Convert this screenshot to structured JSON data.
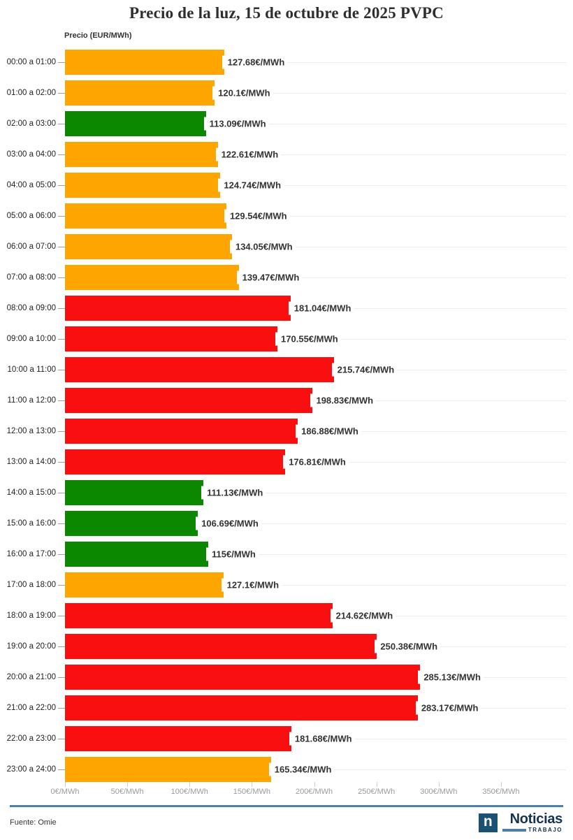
{
  "title": "Precio de la luz, 15 de octubre de 2025 PVPC",
  "axis_title": "Precio (EUR/MWh)",
  "colors": {
    "orange": "#FFA502",
    "red": "#F90F0F",
    "green": "#0B8700",
    "separator_blue": "#4D80A8",
    "navy": "#16324F",
    "logo_square_blue": "#1D5174"
  },
  "chart_data": {
    "type": "bar",
    "orientation": "horizontal",
    "title": "Precio de la luz, 15 de octubre de 2025 PVPC",
    "xlabel": "Precio (EUR/MWh)",
    "ylabel": "",
    "xlim": [
      0,
      400
    ],
    "grid": "horizontal row lines only",
    "legend": "none",
    "x_tick_values": [
      0,
      50,
      100,
      150,
      200,
      250,
      300,
      350
    ],
    "x_tick_labels": [
      "0€/MWh",
      "50€/MWh",
      "100€/MWh",
      "150€/MWh",
      "200€/MWh",
      "250€/MWh",
      "300€/MWh",
      "350€/MWh"
    ],
    "categories": [
      "00:00 a 01:00",
      "01:00 a 02:00",
      "02:00 a 03:00",
      "03:00 a 04:00",
      "04:00 a 05:00",
      "05:00 a 06:00",
      "06:00 a 07:00",
      "07:00 a 08:00",
      "08:00 a 09:00",
      "09:00 a 10:00",
      "10:00 a 11:00",
      "11:00 a 12:00",
      "12:00 a 13:00",
      "13:00 a 14:00",
      "14:00 a 15:00",
      "15:00 a 16:00",
      "16:00 a 17:00",
      "17:00 a 18:00",
      "18:00 a 19:00",
      "19:00 a 20:00",
      "20:00 a 21:00",
      "21:00 a 22:00",
      "22:00 a 23:00",
      "23:00 a 24:00"
    ],
    "values": [
      127.68,
      120.1,
      113.09,
      122.61,
      124.74,
      129.54,
      134.05,
      139.47,
      181.04,
      170.55,
      215.74,
      198.83,
      186.88,
      176.81,
      111.13,
      106.69,
      115,
      127.1,
      214.62,
      250.38,
      285.13,
      283.17,
      181.68,
      165.34
    ],
    "value_labels": [
      "127.68€/MWh",
      "120.1€/MWh",
      "113.09€/MWh",
      "122.61€/MWh",
      "124.74€/MWh",
      "129.54€/MWh",
      "134.05€/MWh",
      "139.47€/MWh",
      "181.04€/MWh",
      "170.55€/MWh",
      "215.74€/MWh",
      "198.83€/MWh",
      "186.88€/MWh",
      "176.81€/MWh",
      "111.13€/MWh",
      "106.69€/MWh",
      "115€/MWh",
      "127.1€/MWh",
      "214.62€/MWh",
      "250.38€/MWh",
      "285.13€/MWh",
      "283.17€/MWh",
      "181.68€/MWh",
      "165.34€/MWh"
    ],
    "bar_colors": [
      "orange",
      "orange",
      "green",
      "orange",
      "orange",
      "orange",
      "orange",
      "orange",
      "red",
      "red",
      "red",
      "red",
      "red",
      "red",
      "green",
      "green",
      "green",
      "orange",
      "red",
      "red",
      "red",
      "red",
      "red",
      "orange"
    ]
  },
  "footer": {
    "source": "Fuente: Omie",
    "logo": {
      "icon_letter": "n",
      "name": "Noticias",
      "sub": "TRABAJO"
    }
  }
}
